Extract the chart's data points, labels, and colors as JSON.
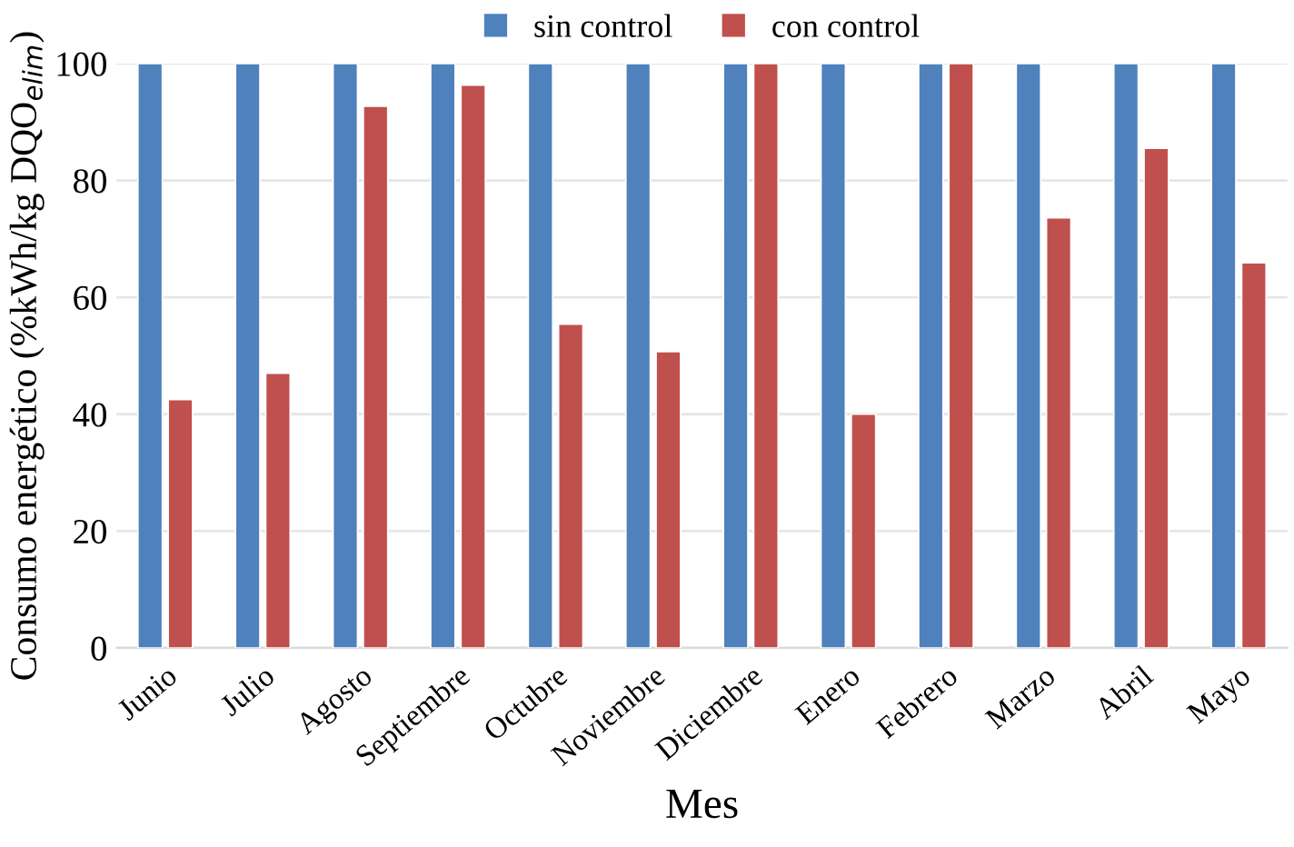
{
  "chart_data": {
    "type": "bar",
    "xlabel": "Mes",
    "ylabel": "Consumo energético (%kWh/kg DQO$_{elim}$)",
    "categories": [
      "Junio",
      "Julio",
      "Agosto",
      "Septiembre",
      "Octubre",
      "Noviembre",
      "Diciembre",
      "Enero",
      "Febrero",
      "Marzo",
      "Abril",
      "Mayo"
    ],
    "series": [
      {
        "name": "sin control",
        "color": "#4f81bd",
        "values": [
          100,
          100,
          100,
          100,
          100,
          100,
          100,
          100,
          100,
          100,
          100,
          100
        ]
      },
      {
        "name": "con control",
        "color": "#c0504d",
        "values": [
          42.5,
          47,
          92.7,
          96.3,
          55.4,
          50.7,
          100,
          40,
          100,
          73.6,
          85.5,
          65.9
        ]
      }
    ],
    "ylim": [
      0,
      100
    ],
    "yticks": [
      0,
      20,
      40,
      60,
      80,
      100
    ],
    "grid": "y",
    "legend": "top"
  }
}
